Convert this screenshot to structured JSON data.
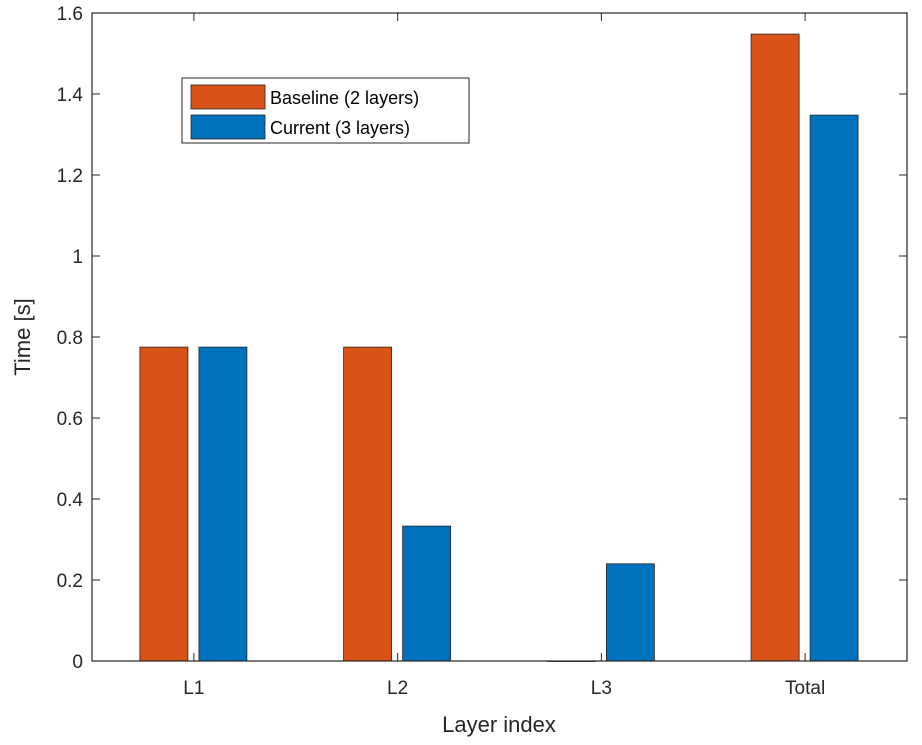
{
  "chart_data": {
    "type": "bar",
    "title": "",
    "xlabel": "Layer index",
    "ylabel": "Time [s]",
    "categories": [
      "L1",
      "L2",
      "L3",
      "Total"
    ],
    "ylim": [
      0,
      1.6
    ],
    "yticks": [
      0,
      0.2,
      0.4,
      0.6,
      0.8,
      1,
      1.2,
      1.4,
      1.6
    ],
    "ytick_labels": [
      "0",
      "0.2",
      "0.4",
      "0.6",
      "0.8",
      "1",
      "1.2",
      "1.4",
      "1.6"
    ],
    "grid": false,
    "legend_position": "top-left",
    "series": [
      {
        "name": "Baseline (2 layers)",
        "color": "#D95319",
        "values": [
          0.775,
          0.775,
          0,
          1.548
        ]
      },
      {
        "name": "Current (3 layers)",
        "color": "#0072BD",
        "values": [
          0.775,
          0.333,
          0.24,
          1.348
        ]
      }
    ]
  }
}
